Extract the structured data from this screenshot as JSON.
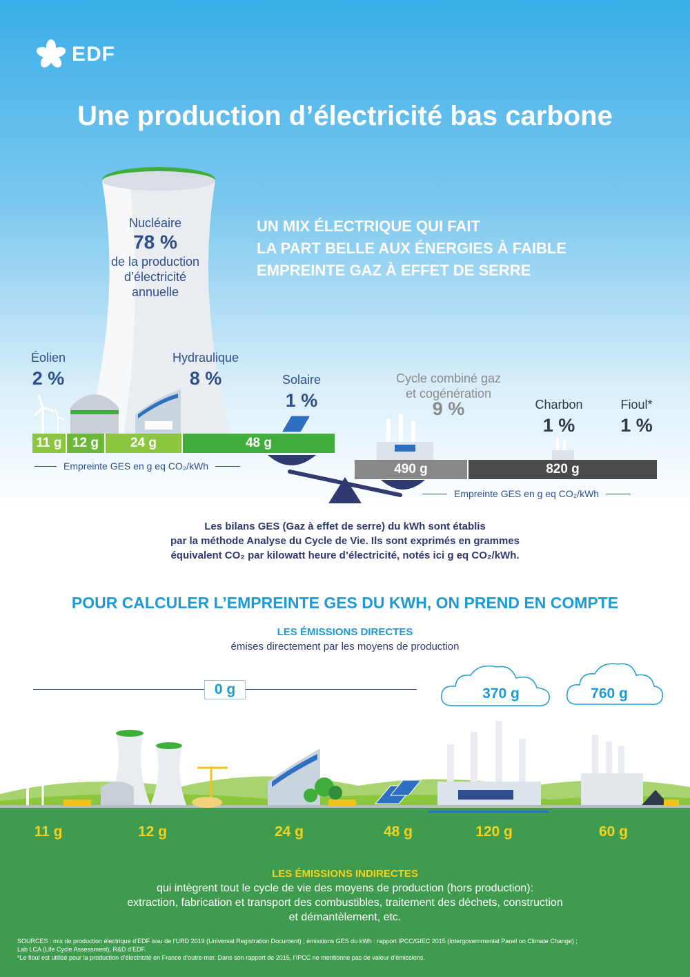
{
  "brand": {
    "name": "EDF"
  },
  "title": "Une production d’électricité bas carbone",
  "nuclear": {
    "label": "Nucléaire",
    "pct": "78 %",
    "desc1": "de la production",
    "desc2": "d’électricité",
    "desc3": "annuelle"
  },
  "mix_heading": [
    "UN MIX ÉLECTRIQUE QUI FAIT",
    "LA PART BELLE AUX ÉNERGIES À FAIBLE",
    "EMPREINTE GAZ À EFFET DE SERRE"
  ],
  "sources_mix": {
    "eolien": {
      "label": "Éolien",
      "pct": "2 %"
    },
    "hydraulique": {
      "label": "Hydraulique",
      "pct": "8 %"
    },
    "solaire": {
      "label": "Solaire",
      "pct": "1 %"
    },
    "gaz": {
      "label1": "Cycle combiné gaz",
      "label2": "et cogénération",
      "pct": "9 %"
    },
    "charbon": {
      "label": "Charbon",
      "pct": "1 %"
    },
    "fioul": {
      "label": "Fioul*",
      "pct": "1 %"
    }
  },
  "low_bar": [
    "11 g",
    "12 g",
    "24 g",
    "48 g"
  ],
  "high_bar": [
    "490 g",
    "820 g"
  ],
  "footprint_label": "Empreinte GES en g eq CO₂/kWh",
  "explanation": [
    "Les bilans GES (Gaz à effet de serre) du kWh sont établis",
    "par la méthode Analyse du Cycle de Vie. Ils sont exprimés en grammes",
    "équivalent CO₂ par kilowatt heure d’électricité, notés ici g eq CO₂/kWh."
  ],
  "calc_heading": "POUR CALCULER L’EMPREINTE GES DU KWH, ON PREND EN COMPTE",
  "direct": {
    "heading": "LES ÉMISSIONS DIRECTES",
    "sub": "émises directement par les moyens de production",
    "zero": "0 g",
    "gas": "370 g",
    "coal": "760 g"
  },
  "indirect_values": [
    "11 g",
    "12 g",
    "24 g",
    "48 g",
    "120 g",
    "60 g"
  ],
  "indirect": {
    "heading": "LES ÉMISSIONS INDIRECTES",
    "lines": [
      "qui intègrent tout le cycle de vie des moyens de production (hors production):",
      "extraction, fabrication et transport des combustibles, traitement des déchets, construction",
      "et démantèlement, etc."
    ]
  },
  "sources_text": [
    "SOURCES : mix de production électrique d’EDF issu de l’URD 2019 (Universal Registration Document) ; émissions GES du kWh : rapport IPCC/GIEC 2015 (Intergovernmental Panel on Climate Change) ;",
    "Lab LCA (Life Cycle Assessment), R&D d’EDF.",
    "*Le fioul est utilisé pour la production d’électricité en France d’outre-mer. Dans son rapport de 2015, l’IPCC ne mentionne pas de valeur d’émissions."
  ],
  "colors": {
    "green_light": "#8cc63f",
    "green": "#3fae3a",
    "grey": "#888888",
    "dark": "#4a4a4a",
    "navy": "#2e4f8c",
    "blue": "#1c9ad6",
    "yellow": "#f5d21d"
  }
}
